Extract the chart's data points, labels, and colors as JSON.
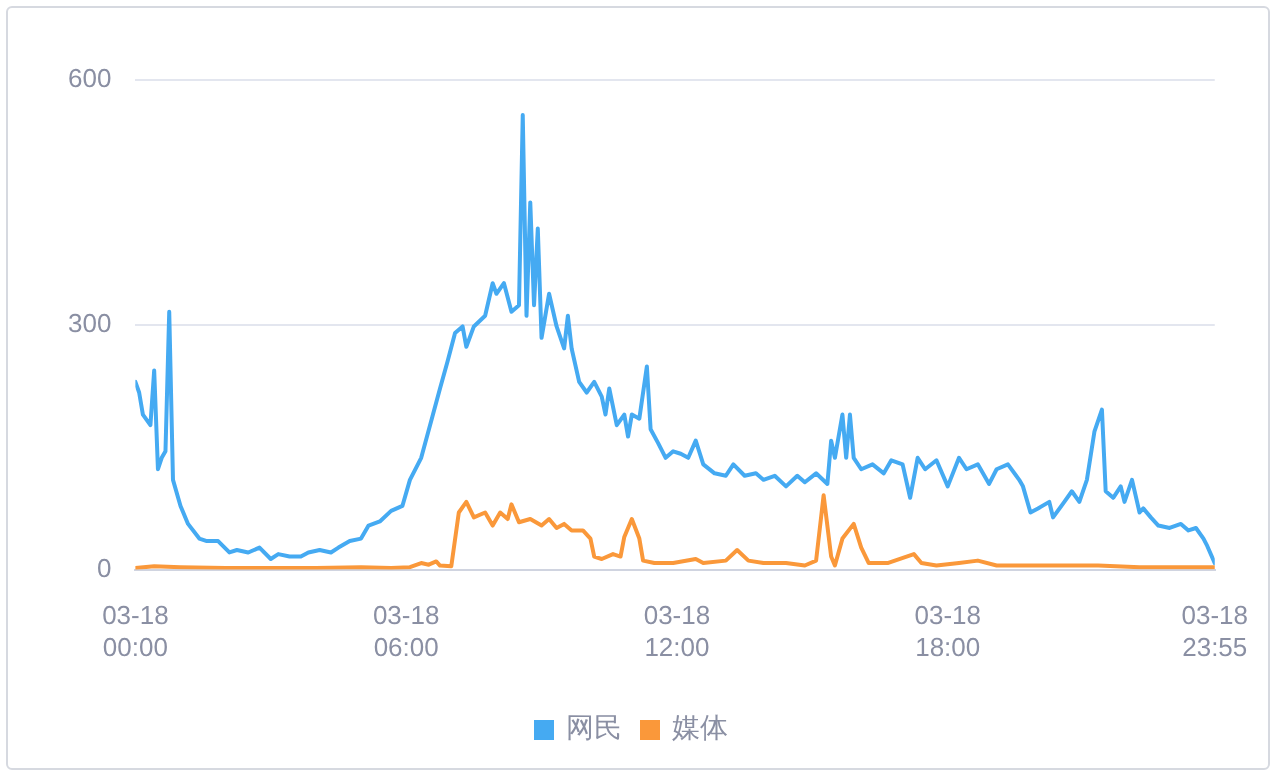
{
  "chart_data": {
    "type": "line",
    "xlim": [
      "--03-18T00:00",
      "--03-18T23:55"
    ],
    "ylim": [
      0,
      600
    ],
    "yticks": [
      0,
      300,
      600
    ],
    "xticks": [
      {
        "value": "--03-18T00:00",
        "label": "03-18\n00:00"
      },
      {
        "value": "--03-18T06:00",
        "label": "03-18\n06:00"
      },
      {
        "value": "--03-18T12:00",
        "label": "03-18\n12:00"
      },
      {
        "value": "--03-18T18:00",
        "label": "03-18\n18:00"
      },
      {
        "value": "--03-18T23:55",
        "label": "03-18\n23:55"
      }
    ],
    "grid": "y",
    "legend": "bottom",
    "marker": "none",
    "line_style": "solid",
    "series": [
      {
        "name": "网民",
        "color": "#45aaf2",
        "x": [
          "--03-18T00:00",
          "--03-18T00:05",
          "--03-18T00:10",
          "--03-18T00:20",
          "--03-18T00:25",
          "--03-18T00:30",
          "--03-18T00:35",
          "--03-18T00:40",
          "--03-18T00:45",
          "--03-18T00:50",
          "--03-18T01:00",
          "--03-18T01:10",
          "--03-18T01:25",
          "--03-18T01:35",
          "--03-18T01:50",
          "--03-18T02:05",
          "--03-18T02:15",
          "--03-18T02:30",
          "--03-18T02:45",
          "--03-18T03:00",
          "--03-18T03:10",
          "--03-18T03:25",
          "--03-18T03:40",
          "--03-18T03:50",
          "--03-18T04:05",
          "--03-18T04:20",
          "--03-18T04:30",
          "--03-18T04:45",
          "--03-18T05:00",
          "--03-18T05:10",
          "--03-18T05:25",
          "--03-18T05:40",
          "--03-18T05:55",
          "--03-18T06:05",
          "--03-18T06:20",
          "--03-18T06:35",
          "--03-18T06:45",
          "--03-18T06:55",
          "--03-18T07:05",
          "--03-18T07:15",
          "--03-18T07:20",
          "--03-18T07:30",
          "--03-18T07:45",
          "--03-18T07:55",
          "--03-18T08:00",
          "--03-18T08:10",
          "--03-18T08:20",
          "--03-18T08:30",
          "--03-18T08:35",
          "--03-18T08:40",
          "--03-18T08:45",
          "--03-18T08:50",
          "--03-18T08:55",
          "--03-18T09:00",
          "--03-18T09:10",
          "--03-18T09:20",
          "--03-18T09:30",
          "--03-18T09:35",
          "--03-18T09:40",
          "--03-18T09:50",
          "--03-18T10:00",
          "--03-18T10:10",
          "--03-18T10:20",
          "--03-18T10:25",
          "--03-18T10:30",
          "--03-18T10:40",
          "--03-18T10:50",
          "--03-18T10:55",
          "--03-18T11:00",
          "--03-18T11:10",
          "--03-18T11:20",
          "--03-18T11:25",
          "--03-18T11:35",
          "--03-18T11:45",
          "--03-18T11:55",
          "--03-18T12:05",
          "--03-18T12:15",
          "--03-18T12:25",
          "--03-18T12:35",
          "--03-18T12:50",
          "--03-18T13:05",
          "--03-18T13:15",
          "--03-18T13:30",
          "--03-18T13:45",
          "--03-18T13:55",
          "--03-18T14:10",
          "--03-18T14:25",
          "--03-18T14:40",
          "--03-18T14:50",
          "--03-18T15:05",
          "--03-18T15:20",
          "--03-18T15:25",
          "--03-18T15:30",
          "--03-18T15:40",
          "--03-18T15:45",
          "--03-18T15:50",
          "--03-18T15:55",
          "--03-18T16:05",
          "--03-18T16:20",
          "--03-18T16:35",
          "--03-18T16:45",
          "--03-18T17:00",
          "--03-18T17:10",
          "--03-18T17:20",
          "--03-18T17:30",
          "--03-18T17:45",
          "--03-18T18:00",
          "--03-18T18:15",
          "--03-18T18:25",
          "--03-18T18:40",
          "--03-18T18:55",
          "--03-18T19:05",
          "--03-18T19:20",
          "--03-18T19:35",
          "--03-18T19:40",
          "--03-18T19:50",
          "--03-18T20:00",
          "--03-18T20:15",
          "--03-18T20:20",
          "--03-18T20:35",
          "--03-18T20:45",
          "--03-18T20:55",
          "--03-18T21:05",
          "--03-18T21:15",
          "--03-18T21:25",
          "--03-18T21:30",
          "--03-18T21:40",
          "--03-18T21:50",
          "--03-18T21:55",
          "--03-18T22:05",
          "--03-18T22:15",
          "--03-18T22:20",
          "--03-18T22:30",
          "--03-18T22:40",
          "--03-18T22:55",
          "--03-18T23:10",
          "--03-18T23:20",
          "--03-18T23:30",
          "--03-18T23:40",
          "--03-18T23:45",
          "--03-18T23:55"
        ],
        "values": [
          230,
          217,
          190,
          177,
          244,
          123,
          137,
          145,
          316,
          110,
          78,
          56,
          38,
          35,
          35,
          21,
          24,
          21,
          27,
          13,
          19,
          16,
          16,
          21,
          24,
          21,
          27,
          35,
          38,
          54,
          59,
          72,
          78,
          110,
          137,
          188,
          222,
          255,
          290,
          298,
          273,
          298,
          311,
          351,
          338,
          351,
          316,
          324,
          557,
          311,
          450,
          324,
          418,
          284,
          338,
          298,
          271,
          311,
          271,
          230,
          217,
          230,
          212,
          190,
          222,
          177,
          190,
          163,
          190,
          185,
          249,
          172,
          155,
          137,
          145,
          142,
          137,
          158,
          129,
          118,
          115,
          129,
          115,
          118,
          110,
          115,
          102,
          115,
          107,
          118,
          105,
          158,
          137,
          190,
          137,
          190,
          137,
          123,
          129,
          118,
          134,
          129,
          88,
          137,
          123,
          134,
          102,
          137,
          123,
          129,
          105,
          123,
          129,
          110,
          102,
          70,
          75,
          83,
          64,
          83,
          96,
          83,
          110,
          169,
          196,
          96,
          88,
          102,
          83,
          110,
          70,
          75,
          64,
          54,
          51,
          56,
          48,
          51,
          38,
          29,
          8
        ]
      },
      {
        "name": "媒体",
        "color": "#fa983a",
        "x": [
          "--03-18T00:00",
          "--03-18T00:25",
          "--03-18T01:00",
          "--03-18T02:00",
          "--03-18T03:00",
          "--03-18T04:00",
          "--03-18T05:00",
          "--03-18T05:40",
          "--03-18T06:05",
          "--03-18T06:20",
          "--03-18T06:30",
          "--03-18T06:40",
          "--03-18T06:45",
          "--03-18T07:00",
          "--03-18T07:10",
          "--03-18T07:20",
          "--03-18T07:30",
          "--03-18T07:45",
          "--03-18T07:55",
          "--03-18T08:05",
          "--03-18T08:15",
          "--03-18T08:20",
          "--03-18T08:30",
          "--03-18T08:45",
          "--03-18T09:00",
          "--03-18T09:10",
          "--03-18T09:20",
          "--03-18T09:30",
          "--03-18T09:40",
          "--03-18T09:55",
          "--03-18T10:05",
          "--03-18T10:10",
          "--03-18T10:20",
          "--03-18T10:35",
          "--03-18T10:45",
          "--03-18T10:50",
          "--03-18T11:00",
          "--03-18T11:10",
          "--03-18T11:15",
          "--03-18T11:30",
          "--03-18T11:55",
          "--03-18T12:25",
          "--03-18T12:35",
          "--03-18T13:05",
          "--03-18T13:20",
          "--03-18T13:35",
          "--03-18T13:55",
          "--03-18T14:25",
          "--03-18T14:50",
          "--03-18T15:05",
          "--03-18T15:15",
          "--03-18T15:25",
          "--03-18T15:30",
          "--03-18T15:40",
          "--03-18T15:55",
          "--03-18T16:05",
          "--03-18T16:15",
          "--03-18T16:40",
          "--03-18T17:15",
          "--03-18T17:25",
          "--03-18T17:45",
          "--03-18T18:15",
          "--03-18T18:40",
          "--03-18T19:05",
          "--03-18T19:35",
          "--03-18T20:30",
          "--03-18T21:20",
          "--03-18T22:15",
          "--03-18T23:55"
        ],
        "values": [
          2,
          4,
          3,
          2,
          2,
          2,
          3,
          2,
          3,
          8,
          6,
          10,
          5,
          4,
          70,
          83,
          64,
          70,
          54,
          70,
          62,
          80,
          58,
          62,
          54,
          62,
          51,
          56,
          48,
          48,
          38,
          16,
          13,
          19,
          16,
          40,
          62,
          38,
          11,
          8,
          8,
          13,
          8,
          11,
          24,
          11,
          8,
          8,
          5,
          11,
          91,
          16,
          5,
          38,
          56,
          27,
          8,
          8,
          19,
          8,
          5,
          8,
          11,
          5,
          5,
          5,
          5,
          3,
          3
        ]
      }
    ]
  }
}
